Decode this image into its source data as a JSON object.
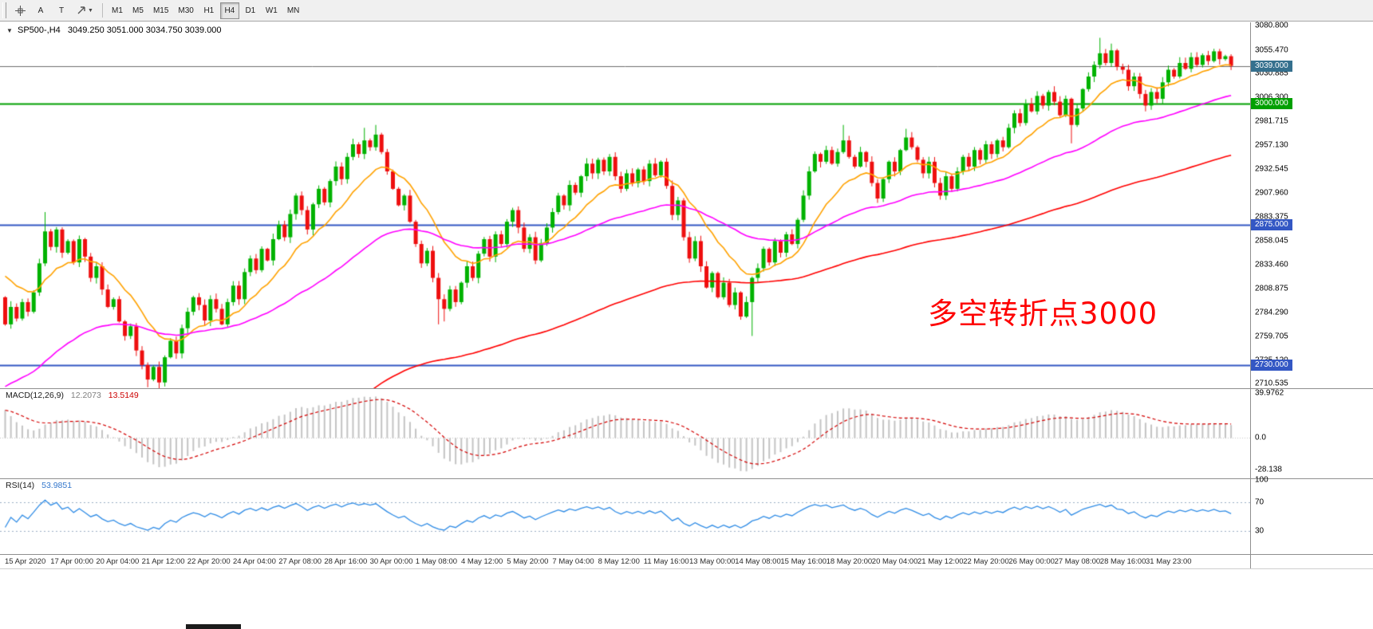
{
  "toolbar": {
    "tool_a": "A",
    "tool_t": "T",
    "caret": "▼",
    "timeframes": [
      "M1",
      "M5",
      "M15",
      "M30",
      "H1",
      "H4",
      "D1",
      "W1",
      "MN"
    ],
    "active_timeframe": "H4"
  },
  "header": {
    "collapse_glyph": "▼",
    "symbol": "SP500-,H4",
    "ohlc": "3049.250 3051.000 3034.750 3039.000"
  },
  "annotation": {
    "text": "多空转折点3000",
    "color": "#fe0000"
  },
  "y_axis_labels": [
    "3080.800",
    "3055.470",
    "3030.885",
    "3006.300",
    "2981.715",
    "2957.130",
    "2932.545",
    "2907.960",
    "2883.375",
    "2858.045",
    "2833.460",
    "2808.875",
    "2784.290",
    "2759.705",
    "2735.120",
    "2710.535"
  ],
  "levels": [
    {
      "name": "bid",
      "label": "3039.000",
      "value": 3039.0,
      "badge": "#35708E",
      "line": "#6e6e6e",
      "width": 1
    },
    {
      "name": "green-3000",
      "label": "3000.000",
      "value": 3000.0,
      "badge": "#00A000",
      "line": "#00A000",
      "width": 2
    },
    {
      "name": "blue-2875",
      "label": "2875.000",
      "value": 2875.0,
      "badge": "#3357C4",
      "line": "#3357C4",
      "width": 2
    },
    {
      "name": "blue-2730",
      "label": "2730.000",
      "value": 2730.0,
      "badge": "#3357C4",
      "line": "#3357C4",
      "width": 2
    }
  ],
  "macd": {
    "title": "MACD(12,26,9)",
    "value_main": "12.2073",
    "value_signal": "13.5149",
    "axis_labels": [
      "39.9762",
      "0.0",
      "-28.138"
    ]
  },
  "rsi": {
    "title": "RSI(14)",
    "value": "53.9851",
    "axis_labels": [
      "100",
      "70",
      "30"
    ]
  },
  "time_axis_labels": [
    "15 Apr 2020",
    "17 Apr 00:00",
    "20 Apr 04:00",
    "21 Apr 12:00",
    "22 Apr 20:00",
    "24 Apr 04:00",
    "27 Apr 08:00",
    "28 Apr 16:00",
    "30 Apr 00:00",
    "1 May 08:00",
    "4 May 12:00",
    "5 May 20:00",
    "7 May 04:00",
    "8 May 12:00",
    "11 May 16:00",
    "13 May 00:00",
    "14 May 08:00",
    "15 May 16:00",
    "18 May 20:00",
    "20 May 04:00",
    "21 May 12:00",
    "22 May 20:00",
    "26 May 00:00",
    "27 May 08:00",
    "28 May 16:00",
    "31 May 23:00"
  ],
  "chart_data": {
    "type": "candlestick",
    "symbol": "SP500-",
    "timeframe": "H4",
    "last_ohlc": {
      "open": 3049.25,
      "high": 3051.0,
      "low": 3034.75,
      "close": 3039.0
    },
    "y_range": [
      2706,
      3084
    ],
    "open_first": 2800,
    "closes": [
      2772,
      2790,
      2778,
      2795,
      2785,
      2805,
      2835,
      2868,
      2852,
      2870,
      2846,
      2858,
      2836,
      2860,
      2842,
      2820,
      2832,
      2808,
      2790,
      2798,
      2775,
      2760,
      2770,
      2745,
      2730,
      2715,
      2728,
      2712,
      2738,
      2755,
      2742,
      2768,
      2785,
      2800,
      2792,
      2776,
      2798,
      2788,
      2772,
      2795,
      2812,
      2798,
      2826,
      2840,
      2828,
      2850,
      2838,
      2860,
      2875,
      2862,
      2886,
      2905,
      2890,
      2870,
      2896,
      2912,
      2898,
      2920,
      2935,
      2922,
      2945,
      2958,
      2948,
      2962,
      2955,
      2968,
      2950,
      2930,
      2912,
      2895,
      2905,
      2878,
      2855,
      2835,
      2848,
      2820,
      2798,
      2788,
      2808,
      2795,
      2815,
      2832,
      2820,
      2845,
      2860,
      2842,
      2865,
      2855,
      2878,
      2890,
      2872,
      2850,
      2862,
      2838,
      2856,
      2872,
      2888,
      2905,
      2895,
      2916,
      2908,
      2925,
      2938,
      2928,
      2942,
      2930,
      2945,
      2925,
      2912,
      2928,
      2918,
      2932,
      2920,
      2938,
      2926,
      2940,
      2915,
      2885,
      2900,
      2862,
      2840,
      2858,
      2832,
      2810,
      2825,
      2800,
      2815,
      2792,
      2805,
      2780,
      2795,
      2820,
      2830,
      2850,
      2836,
      2858,
      2846,
      2865,
      2855,
      2880,
      2905,
      2930,
      2948,
      2940,
      2952,
      2938,
      2950,
      2962,
      2945,
      2935,
      2950,
      2940,
      2918,
      2902,
      2922,
      2940,
      2930,
      2952,
      2965,
      2955,
      2942,
      2928,
      2940,
      2918,
      2905,
      2925,
      2912,
      2930,
      2945,
      2935,
      2952,
      2942,
      2958,
      2948,
      2962,
      2955,
      2975,
      2990,
      2980,
      3000,
      2992,
      3008,
      2998,
      3012,
      3002,
      2988,
      3005,
      2978,
      2995,
      3015,
      3028,
      3040,
      3052,
      3042,
      3055,
      3038,
      3035,
      3018,
      3028,
      3010,
      2998,
      3012,
      3005,
      3022,
      3035,
      3028,
      3042,
      3036,
      3048,
      3040,
      3050,
      3044,
      3054,
      3046,
      3049,
      3039
    ],
    "wick_overrides": {
      "7": [
        2888,
        null
      ],
      "25": [
        null,
        2707
      ],
      "27": [
        null,
        2706
      ],
      "63": [
        2975,
        null
      ],
      "65": [
        2978,
        null
      ],
      "76": [
        null,
        2772
      ],
      "77": [
        null,
        2775
      ],
      "131": [
        null,
        2760
      ],
      "147": [
        2978,
        null
      ],
      "158": [
        2974,
        null
      ],
      "187": [
        null,
        2959
      ],
      "192": [
        3068,
        null
      ],
      "194": [
        3062,
        null
      ],
      "200": [
        null,
        2992
      ],
      "215": [
        3051,
        3034.75
      ]
    },
    "moving_averages": [
      {
        "name": "ma-fast",
        "period": 13,
        "init": 2830,
        "color": "#ffa200"
      },
      {
        "name": "ma-medium",
        "period": 48,
        "init": 2705,
        "color": "#ff00ff"
      },
      {
        "name": "ma-slow",
        "period": 120,
        "init": 2430,
        "color": "#ff0000"
      }
    ],
    "macd_indicator": {
      "fast": 12,
      "slow": 26,
      "signal": 9,
      "init_fast": 2845,
      "init_slow": 2812,
      "range": [
        -35.8,
        43.5
      ],
      "bar_color": "#c4c4c4",
      "signal_color": "#d40000"
    },
    "rsi_indicator": {
      "period": 14,
      "range": [
        0,
        100
      ],
      "levels": [
        70,
        30
      ],
      "line_color": "#2f8ce6",
      "level_color": "#9bb0c6"
    },
    "candle_colors": {
      "up": "#00b200",
      "down": "#ee0f0f"
    },
    "hlines": [
      3000,
      2875,
      2730
    ],
    "bid": 3039.0
  }
}
